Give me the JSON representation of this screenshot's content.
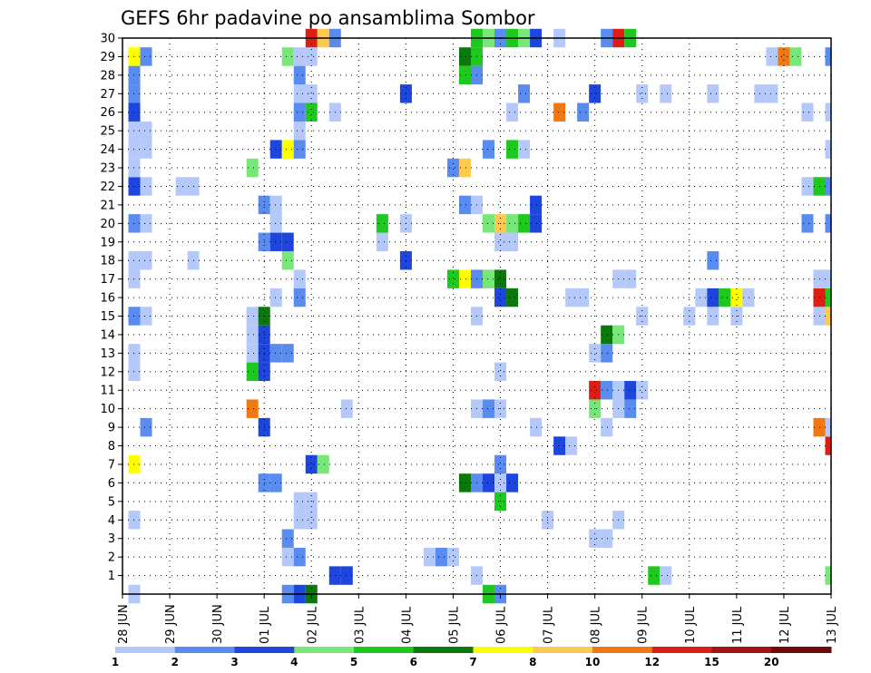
{
  "chart_data": {
    "type": "heatmap",
    "title": "GEFS 6hr padavine po ansamblima Sombor",
    "x_tick_labels": [
      "28 JUN",
      "29 JUN",
      "30 JUN",
      "01 JUL",
      "02 JUL",
      "03 JUL",
      "04 JUL",
      "05 JUL",
      "06 JUL",
      "07 JUL",
      "08 JUL",
      "09 JUL",
      "10 JUL",
      "11 JUL",
      "12 JUL",
      "13 JUL"
    ],
    "x_unit": "days (4 x 6hr steps per day)",
    "x_range": [
      0,
      15
    ],
    "y_tick_labels": [
      1,
      2,
      3,
      4,
      5,
      6,
      7,
      8,
      9,
      10,
      11,
      12,
      13,
      14,
      15,
      16,
      17,
      18,
      19,
      20,
      21,
      22,
      23,
      24,
      25,
      26,
      27,
      28,
      29,
      30
    ],
    "y_range": [
      0,
      30
    ],
    "grid": true,
    "colorbar": {
      "position": "bottom",
      "tick_labels": [
        "1",
        "2",
        "3",
        "4",
        "5",
        "6",
        "7",
        "8",
        "10",
        "12",
        "15",
        "20"
      ],
      "colors": [
        "#b4c8fa",
        "#5a8cf0",
        "#1e46dc",
        "#78e678",
        "#1ec81e",
        "#0a780a",
        "#ffff00",
        "#ffc850",
        "#f07814",
        "#dc1e14",
        "#a01414",
        "#6e0a0a"
      ]
    },
    "cells": [
      [
        0.25,
        0,
        1
      ],
      [
        3.5,
        0,
        2
      ],
      [
        3.75,
        0,
        3
      ],
      [
        4,
        0,
        6
      ],
      [
        7.75,
        0,
        5
      ],
      [
        8,
        0,
        2
      ],
      [
        4.5,
        1,
        3
      ],
      [
        4.75,
        1,
        3
      ],
      [
        7.5,
        1,
        1
      ],
      [
        11.25,
        1,
        5
      ],
      [
        11.5,
        1,
        1
      ],
      [
        15,
        1,
        4
      ],
      [
        3.5,
        2,
        1
      ],
      [
        3.75,
        2,
        2
      ],
      [
        6.5,
        2,
        1
      ],
      [
        6.75,
        2,
        2
      ],
      [
        7,
        2,
        1
      ],
      [
        3.5,
        3,
        2
      ],
      [
        10,
        3,
        1
      ],
      [
        10.25,
        3,
        1
      ],
      [
        0.25,
        4,
        1
      ],
      [
        3.75,
        4,
        1
      ],
      [
        4,
        4,
        1
      ],
      [
        9,
        4,
        1
      ],
      [
        10.5,
        4,
        1
      ],
      [
        3.75,
        5,
        1
      ],
      [
        4,
        5,
        1
      ],
      [
        8,
        5,
        5
      ],
      [
        3,
        6,
        2
      ],
      [
        3.25,
        6,
        2
      ],
      [
        7.25,
        6,
        6
      ],
      [
        7.5,
        6,
        2
      ],
      [
        7.75,
        6,
        3
      ],
      [
        8,
        6,
        1
      ],
      [
        8.25,
        6,
        3
      ],
      [
        0.25,
        7,
        7
      ],
      [
        4,
        7,
        3
      ],
      [
        4.25,
        7,
        4
      ],
      [
        8,
        7,
        2
      ],
      [
        9.25,
        8,
        3
      ],
      [
        9.5,
        8,
        1
      ],
      [
        15,
        8,
        10
      ],
      [
        0.5,
        9,
        2
      ],
      [
        3,
        9,
        3
      ],
      [
        8.75,
        9,
        1
      ],
      [
        10.25,
        9,
        1
      ],
      [
        14.75,
        9,
        9
      ],
      [
        15,
        9,
        1
      ],
      [
        2.75,
        10,
        9
      ],
      [
        4.75,
        10,
        1
      ],
      [
        7.5,
        10,
        1
      ],
      [
        7.75,
        10,
        2
      ],
      [
        8,
        10,
        1
      ],
      [
        10,
        10,
        4
      ],
      [
        10.5,
        10,
        1
      ],
      [
        10.75,
        10,
        2
      ],
      [
        10,
        11,
        10
      ],
      [
        10.25,
        11,
        2
      ],
      [
        10.5,
        11,
        1
      ],
      [
        10.75,
        11,
        3
      ],
      [
        11,
        11,
        1
      ],
      [
        0.25,
        12,
        1
      ],
      [
        2.75,
        12,
        5
      ],
      [
        3,
        12,
        3
      ],
      [
        8,
        12,
        1
      ],
      [
        0.25,
        13,
        1
      ],
      [
        2.75,
        13,
        1
      ],
      [
        3,
        13,
        3
      ],
      [
        3.25,
        13,
        2
      ],
      [
        3.5,
        13,
        2
      ],
      [
        10,
        13,
        1
      ],
      [
        10.25,
        13,
        2
      ],
      [
        2.75,
        14,
        1
      ],
      [
        3,
        14,
        3
      ],
      [
        10.25,
        14,
        6
      ],
      [
        10.5,
        14,
        4
      ],
      [
        0.25,
        15,
        2
      ],
      [
        0.5,
        15,
        1
      ],
      [
        2.75,
        15,
        1
      ],
      [
        3,
        15,
        6
      ],
      [
        7.5,
        15,
        1
      ],
      [
        11,
        15,
        1
      ],
      [
        12,
        15,
        1
      ],
      [
        12.5,
        15,
        1
      ],
      [
        13,
        15,
        1
      ],
      [
        14.75,
        15,
        1
      ],
      [
        15,
        15,
        8
      ],
      [
        3.25,
        16,
        1
      ],
      [
        3.75,
        16,
        2
      ],
      [
        8,
        16,
        3
      ],
      [
        8.25,
        16,
        6
      ],
      [
        9.5,
        16,
        1
      ],
      [
        9.75,
        16,
        1
      ],
      [
        12.25,
        16,
        1
      ],
      [
        12.5,
        16,
        3
      ],
      [
        12.75,
        16,
        5
      ],
      [
        13,
        16,
        7
      ],
      [
        13.25,
        16,
        1
      ],
      [
        14.75,
        16,
        10
      ],
      [
        15,
        16,
        5
      ],
      [
        0.25,
        17,
        1
      ],
      [
        3.75,
        17,
        1
      ],
      [
        7,
        17,
        5
      ],
      [
        7.25,
        17,
        7
      ],
      [
        7.5,
        17,
        2
      ],
      [
        7.75,
        17,
        4
      ],
      [
        8,
        17,
        6
      ],
      [
        10.5,
        17,
        1
      ],
      [
        10.75,
        17,
        1
      ],
      [
        14.75,
        17,
        1
      ],
      [
        15,
        17,
        1
      ],
      [
        0.25,
        18,
        1
      ],
      [
        0.5,
        18,
        1
      ],
      [
        1.5,
        18,
        1
      ],
      [
        3.5,
        18,
        4
      ],
      [
        6,
        18,
        3
      ],
      [
        12.5,
        18,
        2
      ],
      [
        3,
        19,
        2
      ],
      [
        3.25,
        19,
        3
      ],
      [
        3.5,
        19,
        3
      ],
      [
        5.5,
        19,
        1
      ],
      [
        8,
        19,
        1
      ],
      [
        8.25,
        19,
        1
      ],
      [
        0.25,
        20,
        2
      ],
      [
        0.5,
        20,
        1
      ],
      [
        3.25,
        20,
        1
      ],
      [
        5.5,
        20,
        5
      ],
      [
        6,
        20,
        1
      ],
      [
        7.75,
        20,
        4
      ],
      [
        8,
        20,
        8
      ],
      [
        8.25,
        20,
        4
      ],
      [
        8.5,
        20,
        5
      ],
      [
        8.75,
        20,
        3
      ],
      [
        14.5,
        20,
        2
      ],
      [
        15,
        20,
        2
      ],
      [
        3,
        21,
        2
      ],
      [
        3.25,
        21,
        1
      ],
      [
        7.25,
        21,
        2
      ],
      [
        7.5,
        21,
        1
      ],
      [
        8.75,
        21,
        3
      ],
      [
        0.25,
        22,
        3
      ],
      [
        0.5,
        22,
        1
      ],
      [
        1.25,
        22,
        1
      ],
      [
        1.5,
        22,
        1
      ],
      [
        14.5,
        22,
        1
      ],
      [
        14.75,
        22,
        5
      ],
      [
        15,
        22,
        2
      ],
      [
        0.25,
        23,
        1
      ],
      [
        2.75,
        23,
        4
      ],
      [
        7,
        23,
        2
      ],
      [
        7.25,
        23,
        8
      ],
      [
        0.25,
        24,
        1
      ],
      [
        0.5,
        24,
        1
      ],
      [
        3.25,
        24,
        3
      ],
      [
        3.5,
        24,
        7
      ],
      [
        3.75,
        24,
        2
      ],
      [
        7.75,
        24,
        2
      ],
      [
        8.25,
        24,
        5
      ],
      [
        8.5,
        24,
        1
      ],
      [
        15,
        24,
        1
      ],
      [
        0.25,
        25,
        1
      ],
      [
        0.5,
        25,
        1
      ],
      [
        3.75,
        25,
        1
      ],
      [
        0.25,
        26,
        3
      ],
      [
        3.75,
        26,
        2
      ],
      [
        4,
        26,
        5
      ],
      [
        4.5,
        26,
        1
      ],
      [
        8.25,
        26,
        1
      ],
      [
        9.25,
        26,
        9
      ],
      [
        9.75,
        26,
        2
      ],
      [
        14.5,
        26,
        1
      ],
      [
        15,
        26,
        1
      ],
      [
        0.25,
        27,
        2
      ],
      [
        3.75,
        27,
        1
      ],
      [
        4,
        27,
        1
      ],
      [
        6,
        27,
        3
      ],
      [
        8.5,
        27,
        2
      ],
      [
        10,
        27,
        3
      ],
      [
        11,
        27,
        1
      ],
      [
        11.5,
        27,
        1
      ],
      [
        12.5,
        27,
        1
      ],
      [
        13.5,
        27,
        1
      ],
      [
        13.75,
        27,
        1
      ],
      [
        0.25,
        28,
        2
      ],
      [
        3.75,
        28,
        2
      ],
      [
        7.25,
        28,
        5
      ],
      [
        7.5,
        28,
        2
      ],
      [
        0.25,
        29,
        7
      ],
      [
        0.5,
        29,
        2
      ],
      [
        3.5,
        29,
        4
      ],
      [
        3.75,
        29,
        1
      ],
      [
        4,
        29,
        1
      ],
      [
        7.25,
        29,
        6
      ],
      [
        7.5,
        29,
        5
      ],
      [
        13.75,
        29,
        1
      ],
      [
        14,
        29,
        9
      ],
      [
        14.25,
        29,
        4
      ],
      [
        15,
        29,
        2
      ],
      [
        4,
        30,
        10
      ],
      [
        4.25,
        30,
        8
      ],
      [
        4.5,
        30,
        2
      ],
      [
        7.5,
        30,
        5
      ],
      [
        7.75,
        30,
        4
      ],
      [
        8,
        30,
        2
      ],
      [
        8.25,
        30,
        5
      ],
      [
        8.5,
        30,
        4
      ],
      [
        8.75,
        30,
        3
      ],
      [
        9.25,
        30,
        1
      ],
      [
        10.25,
        30,
        2
      ],
      [
        10.5,
        30,
        10
      ],
      [
        10.75,
        30,
        5
      ]
    ]
  }
}
